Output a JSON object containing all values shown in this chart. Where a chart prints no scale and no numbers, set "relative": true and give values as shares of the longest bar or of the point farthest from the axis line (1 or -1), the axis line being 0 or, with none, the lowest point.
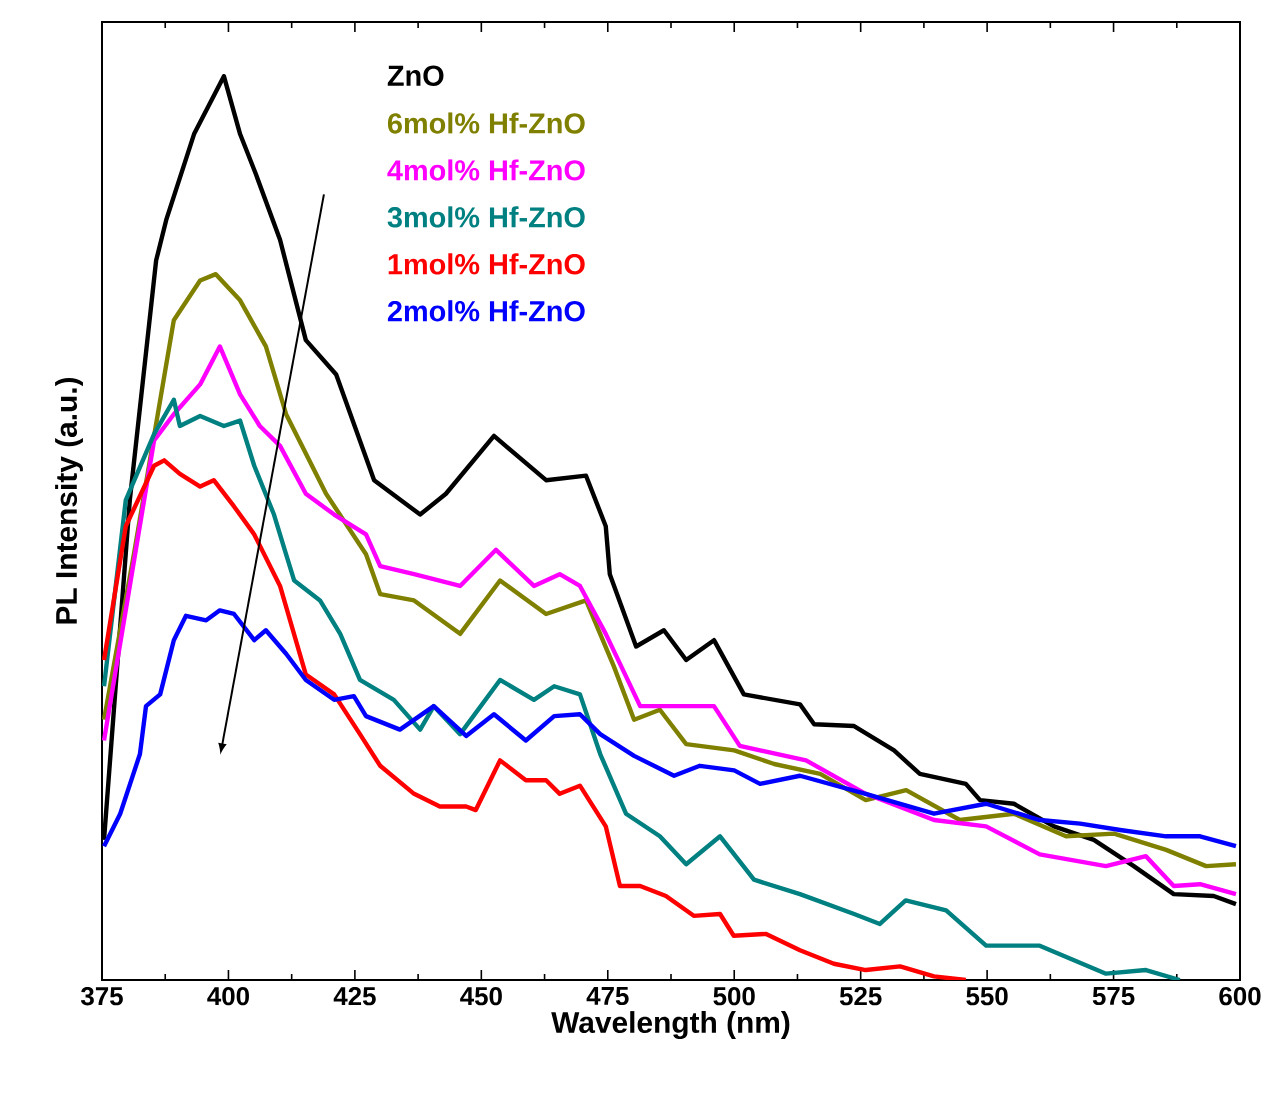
{
  "chart_data": {
    "type": "line",
    "relative": true,
    "xlabel": "Wavelength (nm)",
    "ylabel": "PL Intensity (a.u.)",
    "xlim": [
      375,
      600
    ],
    "xticks": [
      375,
      400,
      425,
      450,
      475,
      500,
      525,
      550,
      575,
      600
    ],
    "legend": "top",
    "line_style": "solid",
    "series": [
      {
        "name": "ZnO",
        "color": "#000000",
        "x": [
          375.4,
          380.5,
          385.7,
          387.7,
          393.2,
          399.1,
          402.3,
          405.4,
          410.2,
          415.3,
          421.3,
          428.8,
          437.9,
          443.0,
          452.5,
          462.8,
          470.7,
          474.6,
          475.4,
          480.6,
          486.1,
          490.5,
          496.0,
          501.9,
          513.0,
          515.8,
          523.7,
          531.6,
          536.7,
          545.8,
          548.6,
          555.3,
          563.2,
          571.1,
          579.0,
          586.9,
          594.8,
          599.2
        ],
        "values": [
          0.155,
          0.531,
          0.796,
          0.841,
          0.936,
          1.0,
          0.936,
          0.892,
          0.819,
          0.708,
          0.67,
          0.553,
          0.515,
          0.538,
          0.602,
          0.553,
          0.558,
          0.502,
          0.449,
          0.369,
          0.387,
          0.354,
          0.376,
          0.316,
          0.305,
          0.283,
          0.281,
          0.254,
          0.228,
          0.217,
          0.199,
          0.195,
          0.17,
          0.155,
          0.126,
          0.095,
          0.093,
          0.084
        ]
      },
      {
        "name": "6mol% Hf-ZnO",
        "color": "#808000",
        "x": [
          375.4,
          381.3,
          389.2,
          394.4,
          397.5,
          402.3,
          407.4,
          411.4,
          419.3,
          427.2,
          430.0,
          436.7,
          445.8,
          453.7,
          462.8,
          470.7,
          476.2,
          480.2,
          485.3,
          490.5,
          500.0,
          507.9,
          517.0,
          526.0,
          534.0,
          544.6,
          555.3,
          565.6,
          575.1,
          585.4,
          593.3,
          599.2
        ],
        "values": [
          0.288,
          0.471,
          0.73,
          0.774,
          0.781,
          0.752,
          0.701,
          0.626,
          0.538,
          0.471,
          0.427,
          0.42,
          0.383,
          0.442,
          0.405,
          0.42,
          0.347,
          0.288,
          0.299,
          0.261,
          0.254,
          0.239,
          0.228,
          0.199,
          0.21,
          0.177,
          0.184,
          0.159,
          0.162,
          0.144,
          0.126,
          0.128
        ]
      },
      {
        "name": "4mol% Hf-ZnO",
        "color": "#ff00ff",
        "x": [
          375.4,
          385.3,
          389.2,
          394.4,
          398.3,
          402.3,
          406.2,
          410.2,
          415.3,
          420.9,
          427.2,
          430.0,
          436.7,
          445.8,
          452.9,
          460.4,
          465.5,
          469.5,
          474.6,
          481.4,
          496.0,
          501.1,
          514.2,
          526.0,
          539.5,
          549.8,
          560.4,
          573.5,
          581.4,
          586.9,
          592.1,
          599.2
        ],
        "values": [
          0.265,
          0.597,
          0.626,
          0.659,
          0.701,
          0.648,
          0.613,
          0.591,
          0.538,
          0.515,
          0.493,
          0.458,
          0.449,
          0.436,
          0.476,
          0.436,
          0.449,
          0.436,
          0.383,
          0.303,
          0.303,
          0.259,
          0.243,
          0.206,
          0.177,
          0.17,
          0.139,
          0.126,
          0.137,
          0.104,
          0.106,
          0.095
        ]
      },
      {
        "name": "3mol% Hf-ZnO",
        "color": "#008080",
        "x": [
          375.4,
          379.7,
          385.3,
          389.2,
          390.4,
          394.4,
          399.1,
          402.3,
          405.1,
          409.0,
          411.4,
          413.0,
          418.1,
          422.1,
          426.0,
          432.7,
          437.9,
          440.6,
          445.8,
          453.7,
          460.4,
          464.4,
          469.5,
          473.5,
          478.6,
          485.3,
          490.5,
          497.2,
          503.9,
          513.0,
          523.7,
          528.8,
          533.9,
          541.9,
          549.8,
          560.4,
          573.5,
          581.4,
          588.1
        ],
        "values": [
          0.325,
          0.531,
          0.604,
          0.642,
          0.613,
          0.624,
          0.613,
          0.619,
          0.569,
          0.515,
          0.471,
          0.442,
          0.42,
          0.383,
          0.332,
          0.31,
          0.277,
          0.303,
          0.272,
          0.332,
          0.31,
          0.325,
          0.316,
          0.25,
          0.184,
          0.159,
          0.128,
          0.159,
          0.111,
          0.095,
          0.073,
          0.062,
          0.088,
          0.077,
          0.038,
          0.038,
          0.007,
          0.011,
          0.0
        ]
      },
      {
        "name": "1mol% Hf-ZnO",
        "color": "#ff0000",
        "x": [
          375.4,
          379.7,
          385.3,
          387.3,
          390.4,
          394.4,
          397.1,
          401.1,
          405.1,
          410.2,
          415.3,
          420.9,
          426.0,
          430.0,
          436.7,
          441.8,
          447.0,
          448.9,
          453.7,
          458.8,
          462.8,
          465.5,
          469.5,
          474.6,
          477.4,
          481.4,
          486.5,
          492.0,
          497.2,
          499.9,
          506.3,
          513.0,
          519.7,
          526.0,
          532.8,
          539.5,
          545.8
        ],
        "values": [
          0.354,
          0.502,
          0.569,
          0.575,
          0.56,
          0.546,
          0.553,
          0.524,
          0.493,
          0.436,
          0.338,
          0.316,
          0.272,
          0.237,
          0.206,
          0.192,
          0.192,
          0.188,
          0.243,
          0.221,
          0.221,
          0.206,
          0.215,
          0.17,
          0.104,
          0.104,
          0.093,
          0.071,
          0.073,
          0.049,
          0.051,
          0.033,
          0.018,
          0.011,
          0.015,
          0.004,
          0.0
        ]
      },
      {
        "name": "2mol% Hf-ZnO",
        "color": "#0000ff",
        "x": [
          375.4,
          378.6,
          382.5,
          383.7,
          386.5,
          389.2,
          391.6,
          395.6,
          398.3,
          401.1,
          405.1,
          407.4,
          411.4,
          415.3,
          420.9,
          424.8,
          427.2,
          433.9,
          440.6,
          447.0,
          452.5,
          458.8,
          464.4,
          469.5,
          473.5,
          480.2,
          488.1,
          493.2,
          500.0,
          505.1,
          513.0,
          526.0,
          539.5,
          549.8,
          560.4,
          568.4,
          576.3,
          585.4,
          592.1,
          599.2
        ],
        "values": [
          0.148,
          0.184,
          0.25,
          0.303,
          0.316,
          0.376,
          0.403,
          0.398,
          0.409,
          0.405,
          0.376,
          0.387,
          0.361,
          0.332,
          0.31,
          0.314,
          0.292,
          0.277,
          0.303,
          0.27,
          0.294,
          0.265,
          0.292,
          0.294,
          0.272,
          0.248,
          0.226,
          0.237,
          0.232,
          0.217,
          0.226,
          0.206,
          0.184,
          0.195,
          0.177,
          0.173,
          0.166,
          0.159,
          0.159,
          0.148
        ]
      }
    ]
  }
}
